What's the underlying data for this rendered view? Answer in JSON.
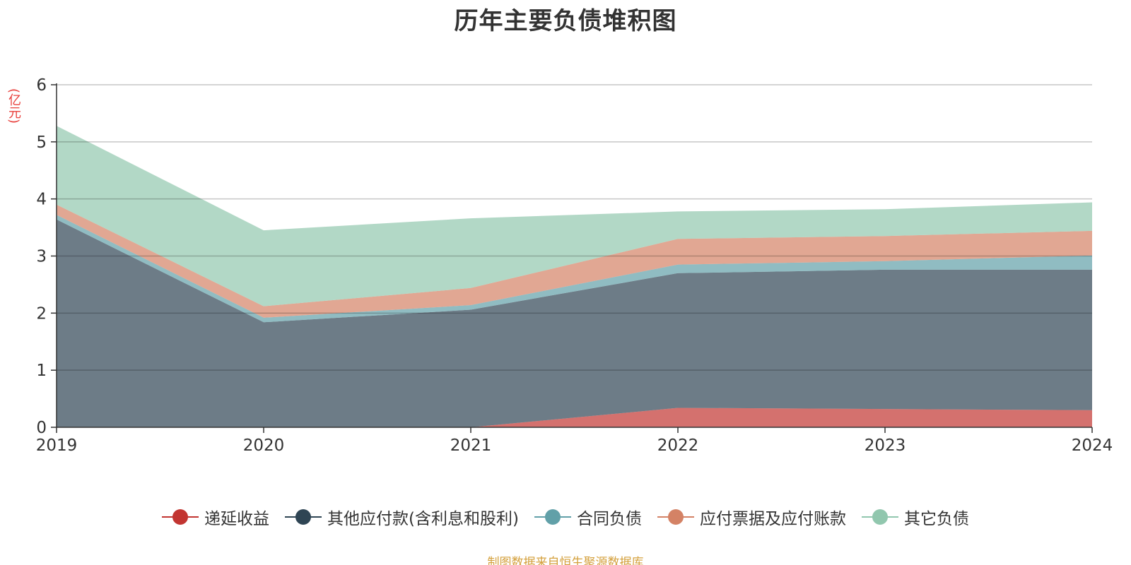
{
  "chart_data": {
    "type": "area",
    "stacked": true,
    "title": "历年主要负债堆积图",
    "unit_label": "(亿元)",
    "x": [
      "2019",
      "2020",
      "2021",
      "2022",
      "2023",
      "2024"
    ],
    "ylim": [
      0,
      6
    ],
    "yticks": [
      "0",
      "1",
      "2",
      "3",
      "4",
      "5",
      "6"
    ],
    "grid": true,
    "legend_position": "bottom",
    "series": [
      {
        "name": "递延收益",
        "color": "#c23531",
        "values": [
          0,
          0,
          0,
          0.34,
          0.32,
          0.3
        ]
      },
      {
        "name": "其他应付款(含利息和股利)",
        "color": "#2f4554",
        "values": [
          3.64,
          1.84,
          2.06,
          2.36,
          2.44,
          2.46
        ]
      },
      {
        "name": "合同负债",
        "color": "#61a0a8",
        "values": [
          0.08,
          0.08,
          0.08,
          0.15,
          0.15,
          0.25
        ]
      },
      {
        "name": "应付票据及应付账款",
        "color": "#d48265",
        "values": [
          0.18,
          0.2,
          0.3,
          0.45,
          0.44,
          0.43
        ]
      },
      {
        "name": "其它负债",
        "color": "#91c7ae",
        "values": [
          1.38,
          1.33,
          1.22,
          0.48,
          0.47,
          0.5
        ]
      }
    ]
  },
  "source_note": "制图数据来自恒生聚源数据库"
}
